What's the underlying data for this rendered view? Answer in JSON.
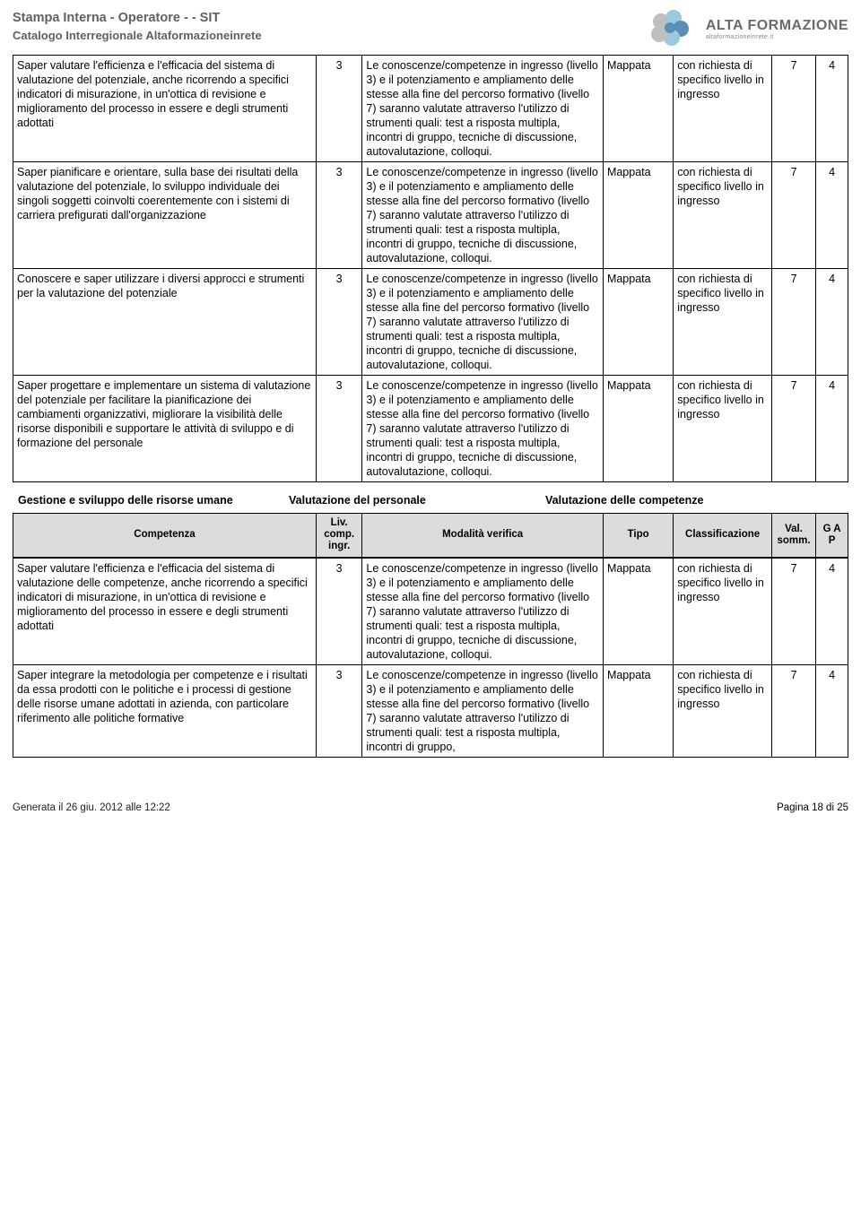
{
  "header": {
    "title": "Stampa Interna - Operatore - - SIT",
    "subtitle": "Catalogo Interregionale Altaformazioneinrete",
    "logo_main": "ALTA FORMAZIONE",
    "logo_sub": "altaformazioneinrete.it"
  },
  "common": {
    "modalita_full": "Le conoscenze/competenze in ingresso (livello 3) e il potenziamento e ampliamento delle stesse alla fine del percorso formativo (livello 7) saranno valutate attraverso l'utilizzo di strumenti quali: test a risposta multipla, incontri di gruppo, tecniche di discussione, autovalutazione, colloqui.",
    "modalita_short": "Le conoscenze/competenze in ingresso (livello 3) e il potenziamento e ampliamento delle stesse alla fine del percorso formativo (livello 7) saranno valutate attraverso l'utilizzo di strumenti quali: test a risposta multipla, incontri di gruppo,",
    "tipo": "Mappata",
    "classificazione": "con richiesta di specifico livello in ingresso",
    "liv": "3",
    "val_somm": "7",
    "gap": "4"
  },
  "rows_top": [
    {
      "competenza": "Saper valutare l'efficienza e l'efficacia del sistema di valutazione del potenziale, anche ricorrendo a specifici indicatori di misurazione, in un'ottica di revisione e miglioramento del processo in essere e degli strumenti adottati"
    },
    {
      "competenza": "Saper pianificare e orientare, sulla base dei risultati della valutazione del potenziale, lo sviluppo individuale dei singoli soggetti coinvolti coerentemente con i sistemi di carriera prefigurati dall'organizzazione"
    },
    {
      "competenza": "Conoscere e saper utilizzare i diversi approcci e strumenti per la valutazione del potenziale"
    },
    {
      "competenza": "Saper progettare e implementare un sistema di valutazione del potenziale per facilitare la pianificazione dei cambiamenti organizzativi, migliorare la visibilità delle risorse disponibili e supportare le attività di sviluppo e di formazione del personale"
    }
  ],
  "section": {
    "c1": "Gestione e sviluppo delle risorse umane",
    "c2": "Valutazione del personale",
    "c3": "Valutazione delle competenze"
  },
  "headers": {
    "h1": "Competenza",
    "h2": "Liv. comp. ingr.",
    "h3": "Modalità verifica",
    "h4": "Tipo",
    "h5": "Classificazione",
    "h6": "Val. somm.",
    "h7": "G A P"
  },
  "rows_bottom": [
    {
      "competenza": "Saper valutare l'efficienza e l'efficacia del sistema di valutazione delle competenze, anche ricorrendo a specifici indicatori di misurazione, in un'ottica di revisione e miglioramento del processo in essere e degli strumenti adottati",
      "modalita_key": "modalita_full"
    },
    {
      "competenza": "Saper integrare la metodologia per competenze e i risultati da essa prodotti con le politiche e i processi di gestione delle risorse umane adottati in azienda, con particolare riferimento alle politiche formative",
      "modalita_key": "modalita_short"
    }
  ],
  "footer": {
    "left": "Generata il 26 giu. 2012 alle 12:22",
    "right": "Pagina 18 di 25"
  },
  "colors": {
    "header_gray": "#606060",
    "th_bg": "#dcdcdc",
    "border": "#000000",
    "logo_blue_dark": "#5a8fb5",
    "logo_blue_light": "#9ec8df",
    "logo_gray": "#bfbfbf"
  }
}
